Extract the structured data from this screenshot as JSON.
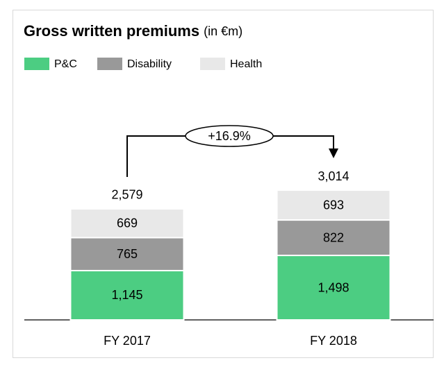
{
  "chart_data": {
    "type": "stacked-bar",
    "title": "Gross written premiums",
    "subtitle": "(in €m)",
    "categories": [
      "FY 2017",
      "FY 2018"
    ],
    "series": [
      {
        "name": "P&C",
        "color": "#4ccd82",
        "values": [
          1145,
          1498
        ],
        "value_labels": [
          "1,145",
          "1,498"
        ]
      },
      {
        "name": "Disability",
        "color": "#999999",
        "values": [
          765,
          822
        ]
      },
      {
        "name": "Health",
        "color": "#e8e8e8",
        "values": [
          669,
          693
        ]
      }
    ],
    "totals": {
      "values": [
        2579,
        3014
      ],
      "value_labels": [
        "2,579",
        "3,014"
      ]
    },
    "annotation": "+16.9%"
  }
}
